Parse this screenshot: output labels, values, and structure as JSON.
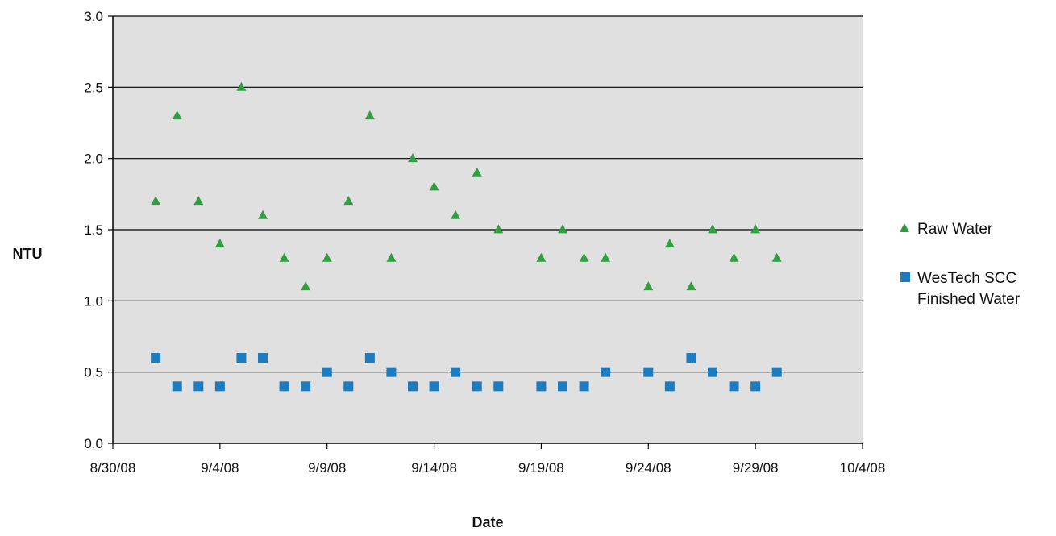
{
  "chart_data": {
    "type": "scatter",
    "title": "",
    "xlabel": "Date",
    "ylabel": "NTU",
    "x_axis": {
      "type": "date",
      "min": "2008-08-30",
      "max": "2008-10-04",
      "ticks": [
        {
          "date": "2008-08-30",
          "label": "8/30/08"
        },
        {
          "date": "2008-09-04",
          "label": "9/4/08"
        },
        {
          "date": "2008-09-09",
          "label": "9/9/08"
        },
        {
          "date": "2008-09-14",
          "label": "9/14/08"
        },
        {
          "date": "2008-09-19",
          "label": "9/19/08"
        },
        {
          "date": "2008-09-24",
          "label": "9/24/08"
        },
        {
          "date": "2008-09-29",
          "label": "9/29/08"
        },
        {
          "date": "2008-10-04",
          "label": "10/4/08"
        }
      ]
    },
    "y_axis": {
      "min": 0,
      "max": 3,
      "ticks": [
        {
          "value": 0,
          "label": "0.0"
        },
        {
          "value": 0.5,
          "label": "0.5"
        },
        {
          "value": 1,
          "label": "1.0"
        },
        {
          "value": 1.5,
          "label": "1.5"
        },
        {
          "value": 2,
          "label": "2.0"
        },
        {
          "value": 2.5,
          "label": "2.5"
        },
        {
          "value": 3,
          "label": "3.0"
        }
      ]
    },
    "grid": "horizontal",
    "plot_background": "#e0e0e0",
    "legend_position": "right",
    "series": [
      {
        "name": "Raw Water",
        "marker": "triangle",
        "color": "#2e9e3e",
        "points": [
          {
            "x": "2008-09-01",
            "y": 1.7
          },
          {
            "x": "2008-09-02",
            "y": 2.3
          },
          {
            "x": "2008-09-03",
            "y": 1.7
          },
          {
            "x": "2008-09-04",
            "y": 1.4
          },
          {
            "x": "2008-09-05",
            "y": 2.5
          },
          {
            "x": "2008-09-06",
            "y": 1.6
          },
          {
            "x": "2008-09-07",
            "y": 1.3
          },
          {
            "x": "2008-09-08",
            "y": 1.1
          },
          {
            "x": "2008-09-09",
            "y": 1.3
          },
          {
            "x": "2008-09-10",
            "y": 1.7
          },
          {
            "x": "2008-09-11",
            "y": 2.3
          },
          {
            "x": "2008-09-12",
            "y": 1.3
          },
          {
            "x": "2008-09-13",
            "y": 2.0
          },
          {
            "x": "2008-09-14",
            "y": 1.8
          },
          {
            "x": "2008-09-15",
            "y": 1.6
          },
          {
            "x": "2008-09-16",
            "y": 1.9
          },
          {
            "x": "2008-09-17",
            "y": 1.5
          },
          {
            "x": "2008-09-19",
            "y": 1.3
          },
          {
            "x": "2008-09-20",
            "y": 1.5
          },
          {
            "x": "2008-09-21",
            "y": 1.3
          },
          {
            "x": "2008-09-22",
            "y": 1.3
          },
          {
            "x": "2008-09-24",
            "y": 1.1
          },
          {
            "x": "2008-09-25",
            "y": 1.4
          },
          {
            "x": "2008-09-26",
            "y": 1.1
          },
          {
            "x": "2008-09-27",
            "y": 1.5
          },
          {
            "x": "2008-09-28",
            "y": 1.3
          },
          {
            "x": "2008-09-29",
            "y": 1.5
          },
          {
            "x": "2008-09-30",
            "y": 1.3
          }
        ]
      },
      {
        "name": "WesTech SCC Finished Water",
        "legend_lines": [
          "WesTech SCC",
          "Finished Water"
        ],
        "marker": "square",
        "color": "#1f7bbf",
        "points": [
          {
            "x": "2008-09-01",
            "y": 0.6
          },
          {
            "x": "2008-09-02",
            "y": 0.4
          },
          {
            "x": "2008-09-03",
            "y": 0.4
          },
          {
            "x": "2008-09-04",
            "y": 0.4
          },
          {
            "x": "2008-09-05",
            "y": 0.6
          },
          {
            "x": "2008-09-06",
            "y": 0.6
          },
          {
            "x": "2008-09-07",
            "y": 0.4
          },
          {
            "x": "2008-09-08",
            "y": 0.4
          },
          {
            "x": "2008-09-09",
            "y": 0.5
          },
          {
            "x": "2008-09-10",
            "y": 0.4
          },
          {
            "x": "2008-09-11",
            "y": 0.6
          },
          {
            "x": "2008-09-12",
            "y": 0.5
          },
          {
            "x": "2008-09-13",
            "y": 0.4
          },
          {
            "x": "2008-09-14",
            "y": 0.4
          },
          {
            "x": "2008-09-15",
            "y": 0.5
          },
          {
            "x": "2008-09-16",
            "y": 0.4
          },
          {
            "x": "2008-09-17",
            "y": 0.4
          },
          {
            "x": "2008-09-19",
            "y": 0.4
          },
          {
            "x": "2008-09-20",
            "y": 0.4
          },
          {
            "x": "2008-09-21",
            "y": 0.4
          },
          {
            "x": "2008-09-22",
            "y": 0.5
          },
          {
            "x": "2008-09-24",
            "y": 0.5
          },
          {
            "x": "2008-09-25",
            "y": 0.4
          },
          {
            "x": "2008-09-26",
            "y": 0.6
          },
          {
            "x": "2008-09-27",
            "y": 0.5
          },
          {
            "x": "2008-09-28",
            "y": 0.4
          },
          {
            "x": "2008-09-29",
            "y": 0.4
          },
          {
            "x": "2008-09-30",
            "y": 0.5
          }
        ]
      }
    ]
  }
}
